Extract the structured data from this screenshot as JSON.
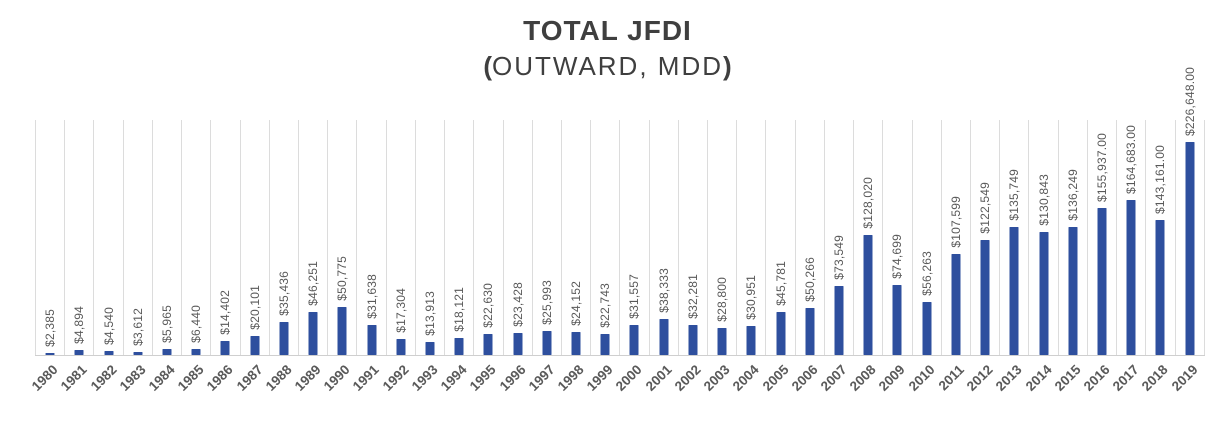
{
  "chart": {
    "title": "TOTAL JFDI",
    "subtitle_prefix": "(",
    "subtitle_text": "OUTWARD, MDD",
    "subtitle_suffix": ")"
  },
  "chart_data": {
    "type": "bar",
    "title": "TOTAL JFDI",
    "subtitle": "(OUTWARD, MDD)",
    "xlabel": "",
    "ylabel": "",
    "legend": "none",
    "grid": "vertical-category-gridlines",
    "ylim": [
      0,
      250000
    ],
    "bar_color": "#2e4f9e",
    "gridline_color": "#dcdcdc",
    "axis_line_color": "#cfcfcf",
    "label_color": "#595959",
    "title_color": "#3f3f3f",
    "categories": [
      "1980",
      "1981",
      "1982",
      "1983",
      "1984",
      "1985",
      "1986",
      "1987",
      "1988",
      "1989",
      "1990",
      "1991",
      "1992",
      "1993",
      "1994",
      "1995",
      "1996",
      "1997",
      "1998",
      "1999",
      "2000",
      "2001",
      "2002",
      "2003",
      "2004",
      "2005",
      "2006",
      "2007",
      "2008",
      "2009",
      "2010",
      "2011",
      "2012",
      "2013",
      "2014",
      "2015",
      "2016",
      "2017",
      "2018",
      "2019"
    ],
    "values": [
      2385,
      4894,
      4540,
      3612,
      5965,
      6440,
      14402,
      20101,
      35436,
      46251,
      50775,
      31638,
      17304,
      13913,
      18121,
      22630,
      23428,
      25993,
      24152,
      22743,
      31557,
      38333,
      32281,
      28800,
      30951,
      45781,
      50266,
      73549,
      128020,
      74699,
      56263,
      107599,
      122549,
      135749,
      130843,
      136249,
      155937,
      164683,
      143161,
      226648
    ],
    "data_labels": [
      "$2,385",
      "$4,894",
      "$4,540",
      "$3,612",
      "$5,965",
      "$6,440",
      "$14,402",
      "$20,101",
      "$35,436",
      "$46,251",
      "$50,775",
      "$31,638",
      "$17,304",
      "$13,913",
      "$18,121",
      "$22,630",
      "$23,428",
      "$25,993",
      "$24,152",
      "$22,743",
      "$31,557",
      "$38,333",
      "$32,281",
      "$28,800",
      "$30,951",
      "$45,781",
      "$50,266",
      "$73,549",
      "$128,020",
      "$74,699",
      "$56,263",
      "$107,599",
      "$122,549",
      "$135,749",
      "$130,843",
      "$136,249",
      "$155,937.00",
      "$164,683.00",
      "$143,161.00",
      "$226,648.00"
    ]
  }
}
